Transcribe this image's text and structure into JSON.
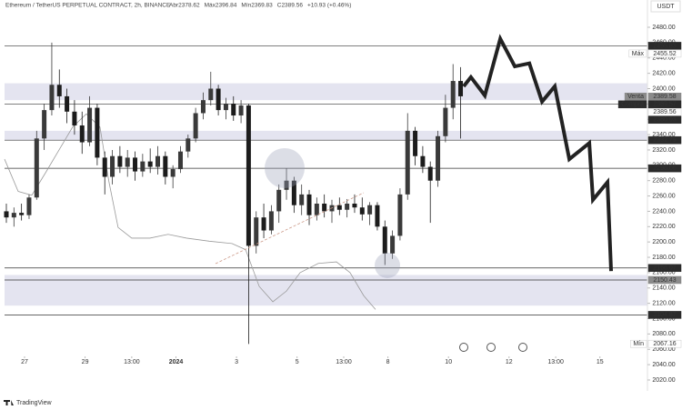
{
  "chart_data": {
    "type": "candlestick",
    "title": "Ethereum / TetherUS PERPETUAL CONTRACT, 2h, BINANCE",
    "header_stats": [
      "Abr2378.62",
      "Máx2396.84",
      "Mín2369.83",
      "C2389.56",
      "+10.93 (+0.46%)"
    ],
    "currency": "USDT",
    "brand": "TradingView",
    "up_color": "#3a3a3a",
    "down_color": "#1c1c1c",
    "x": [
      -0.6,
      -0.35,
      -0.1,
      0.15,
      0.4,
      0.65,
      0.9,
      1.15,
      1.4,
      1.65,
      1.9,
      2.15,
      2.4,
      2.65,
      2.9,
      3.15,
      3.4,
      3.65,
      3.9,
      4.15,
      4.4,
      4.65,
      4.9,
      5.15,
      5.4,
      5.65,
      5.9,
      6.15,
      6.4,
      6.65,
      6.9,
      7.15,
      7.4,
      7.65,
      7.9,
      8.15,
      8.4,
      8.65,
      8.9,
      9.15,
      9.4,
      9.65,
      9.9,
      10.15,
      10.4,
      10.65,
      10.9,
      11.15,
      11.4,
      11.65,
      11.9,
      12.15,
      12.4,
      12.65,
      12.9,
      13.15,
      13.4,
      13.65,
      13.9,
      14.15,
      14.4
    ],
    "open": [
      2240,
      2232,
      2238,
      2235,
      2258,
      2335,
      2372,
      2405,
      2390,
      2370,
      2352,
      2330,
      2375,
      2310,
      2285,
      2312,
      2298,
      2310,
      2292,
      2305,
      2298,
      2312,
      2285,
      2295,
      2318,
      2335,
      2368,
      2385,
      2400,
      2372,
      2380,
      2365,
      2378,
      2195,
      2232,
      2215,
      2240,
      2268,
      2280,
      2248,
      2262,
      2235,
      2250,
      2240,
      2248,
      2242,
      2250,
      2245,
      2236,
      2248,
      2220,
      2185,
      2208,
      2262,
      2345,
      2312,
      2298,
      2280,
      2338,
      2375,
      2410
    ],
    "high": [
      2250,
      2245,
      2250,
      2262,
      2345,
      2380,
      2460,
      2425,
      2400,
      2385,
      2370,
      2390,
      2380,
      2318,
      2320,
      2325,
      2320,
      2318,
      2315,
      2322,
      2325,
      2318,
      2300,
      2325,
      2340,
      2375,
      2395,
      2422,
      2405,
      2388,
      2390,
      2385,
      2380,
      2240,
      2250,
      2248,
      2275,
      2296,
      2285,
      2275,
      2268,
      2258,
      2262,
      2255,
      2258,
      2256,
      2262,
      2258,
      2252,
      2252,
      2228,
      2215,
      2270,
      2368,
      2350,
      2325,
      2305,
      2345,
      2392,
      2432,
      2428
    ],
    "low": [
      2225,
      2220,
      2228,
      2230,
      2255,
      2320,
      2365,
      2375,
      2355,
      2340,
      2315,
      2325,
      2300,
      2262,
      2275,
      2290,
      2285,
      2280,
      2285,
      2290,
      2288,
      2275,
      2270,
      2290,
      2310,
      2330,
      2360,
      2378,
      2365,
      2360,
      2358,
      2355,
      2067,
      2185,
      2205,
      2210,
      2225,
      2255,
      2238,
      2235,
      2222,
      2228,
      2232,
      2225,
      2235,
      2232,
      2238,
      2228,
      2222,
      2215,
      2170,
      2178,
      2202,
      2255,
      2300,
      2290,
      2225,
      2272,
      2330,
      2360,
      2335
    ],
    "close": [
      2232,
      2238,
      2235,
      2258,
      2335,
      2372,
      2405,
      2390,
      2370,
      2352,
      2330,
      2375,
      2310,
      2285,
      2312,
      2298,
      2310,
      2292,
      2305,
      2298,
      2312,
      2285,
      2295,
      2318,
      2335,
      2368,
      2385,
      2400,
      2372,
      2380,
      2365,
      2378,
      2195,
      2232,
      2215,
      2240,
      2268,
      2280,
      2248,
      2262,
      2235,
      2250,
      2240,
      2248,
      2242,
      2250,
      2245,
      2236,
      2248,
      2220,
      2185,
      2208,
      2262,
      2345,
      2312,
      2298,
      2280,
      2338,
      2375,
      2410,
      2390
    ],
    "moving_average": {
      "color": "#9a9a9a",
      "x": [
        -0.66,
        -0.21,
        0.24,
        0.69,
        1.14,
        1.59,
        2.04,
        2.49,
        2.79,
        3.09,
        3.54,
        4.14,
        4.74,
        5.35,
        6.1,
        6.85,
        7.3,
        7.75,
        8.2,
        8.65,
        9.1,
        9.7,
        10.3,
        10.75,
        11.2,
        11.59
      ],
      "values": [
        2308,
        2266,
        2261,
        2290,
        2320,
        2350,
        2367,
        2350,
        2278,
        2219,
        2205,
        2205,
        2210,
        2205,
        2201,
        2198,
        2190,
        2142,
        2122,
        2136,
        2160,
        2172,
        2174,
        2160,
        2130,
        2112
      ]
    },
    "projection": {
      "color": "#222222",
      "x": [
        14.5,
        14.74,
        15.2,
        15.71,
        16.19,
        16.67,
        17.09,
        17.51,
        17.99,
        18.65,
        18.77,
        19.25,
        19.37
      ],
      "values": [
        2403,
        2415,
        2391,
        2465,
        2429,
        2433,
        2383,
        2403,
        2308,
        2329,
        2255,
        2278,
        2162
      ]
    },
    "zones": [
      [
        2385,
        2407
      ],
      [
        2332.79,
        2345
      ],
      [
        2117,
        2157
      ]
    ],
    "levels": [
      {
        "value": 2455.83,
        "style": "dark",
        "line": false
      },
      {
        "value": 2455.52,
        "style": "light",
        "tag": "Máx",
        "line": true
      },
      {
        "value": 2389.58,
        "style": "gray",
        "tag": "Venta",
        "line": false
      },
      {
        "value": 2389.57,
        "style": "dark",
        "tag": "Compra",
        "line": false
      },
      {
        "value": 2389.56,
        "style": "light",
        "line": false
      },
      {
        "value": 2380.03,
        "style": "dark",
        "line": true
      },
      {
        "value": 2332.79,
        "style": "dark",
        "line": true
      },
      {
        "value": 2296.06,
        "style": "dark",
        "line": true
      },
      {
        "value": 2166.07,
        "style": "dark",
        "line": true
      },
      {
        "value": 2150.43,
        "style": "gray",
        "line": true
      },
      {
        "value": 2104.87,
        "style": "dark",
        "line": true
      },
      {
        "value": 2067.16,
        "style": "light",
        "tag": "Mín",
        "line": false
      }
    ],
    "xlim": [
      -0.81,
      20.57
    ],
    "ylim": [
      2017.6,
      2515.6
    ],
    "xticks": [
      {
        "value": 0,
        "label": "27"
      },
      {
        "value": 2,
        "label": "29"
      },
      {
        "value": 3.54,
        "label": "13:00"
      },
      {
        "value": 5,
        "label": "2024"
      },
      {
        "value": 7,
        "label": "3"
      },
      {
        "value": 9,
        "label": "5"
      },
      {
        "value": 10.54,
        "label": "13:00"
      },
      {
        "value": 12,
        "label": "8"
      },
      {
        "value": 14,
        "label": "10"
      },
      {
        "value": 16,
        "label": "12"
      },
      {
        "value": 17.54,
        "label": "13:00"
      },
      {
        "value": 19,
        "label": "15"
      }
    ],
    "yticks": [
      {
        "value": 2020,
        "label": "2020.00"
      },
      {
        "value": 2040,
        "label": "2040.00"
      },
      {
        "value": 2060,
        "label": "2060.00"
      },
      {
        "value": 2080,
        "label": "2080.00"
      },
      {
        "value": 2100,
        "label": "2100.00"
      },
      {
        "value": 2120,
        "label": "2120.00"
      },
      {
        "value": 2140,
        "label": "2140.00"
      },
      {
        "value": 2160,
        "label": "2160.00"
      },
      {
        "value": 2180,
        "label": "2180.00"
      },
      {
        "value": 2200,
        "label": "2200.00"
      },
      {
        "value": 2220,
        "label": "2220.00"
      },
      {
        "value": 2240,
        "label": "2240.00"
      },
      {
        "value": 2260,
        "label": "2260.00"
      },
      {
        "value": 2280,
        "label": "2280.00"
      },
      {
        "value": 2300,
        "label": "2300.00"
      },
      {
        "value": 2320,
        "label": "2320.00"
      },
      {
        "value": 2340,
        "label": "2340.00"
      },
      {
        "value": 2360,
        "label": "2360.00"
      },
      {
        "value": 2380,
        "label": "2380.00"
      },
      {
        "value": 2400,
        "label": "2400.00"
      },
      {
        "value": 2420,
        "label": "2420.00"
      },
      {
        "value": 2440,
        "label": "2440.00"
      },
      {
        "value": 2460,
        "label": "2460.00"
      },
      {
        "value": 2480,
        "label": "2480.00"
      }
    ]
  }
}
